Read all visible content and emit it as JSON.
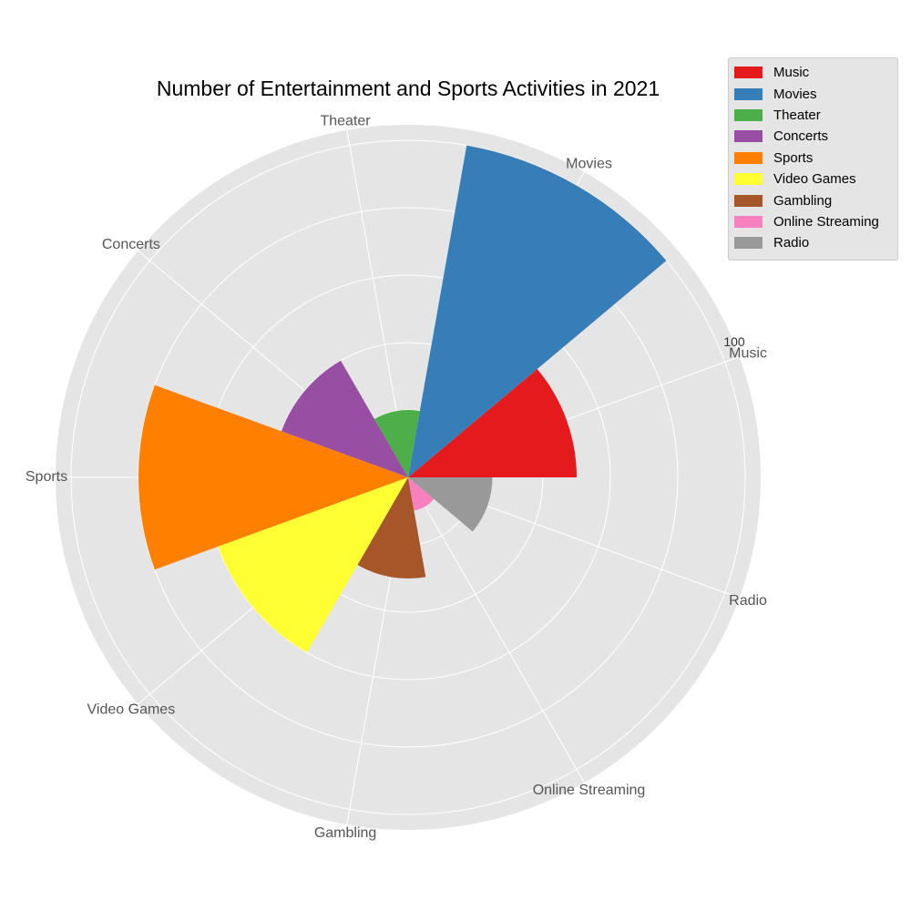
{
  "chart_data": {
    "type": "polar-bar",
    "title": "Number of Entertainment and Sports Activities in 2021",
    "categories": [
      "Music",
      "Movies",
      "Theater",
      "Concerts",
      "Sports",
      "Video Games",
      "Gambling",
      "Online Streaming",
      "Radio"
    ],
    "values": [
      50,
      100,
      20,
      40,
      80,
      60,
      30,
      10,
      25
    ],
    "colors": [
      "#e41a1c",
      "#377eb8",
      "#4daf4a",
      "#984ea3",
      "#ff7f00",
      "#ffff33",
      "#a65628",
      "#f781bf",
      "#999999"
    ],
    "radial_tick_label": "100",
    "rlim": [
      0,
      100
    ],
    "grid": true,
    "legend_position": "top-right"
  }
}
